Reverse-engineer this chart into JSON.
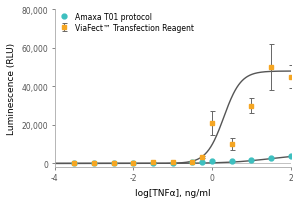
{
  "title": "",
  "xlabel": "log[TNFα], ng/ml",
  "ylabel": "Luminescence (RLU)",
  "bg_color": "#ffffff",
  "viafect_color": "#f5a623",
  "amaxa_color": "#3dbfbf",
  "fit_color": "#555555",
  "xlim": [
    -4,
    2
  ],
  "ylim": [
    -2000,
    80000
  ],
  "yticks": [
    0,
    20000,
    40000,
    60000,
    80000
  ],
  "ytick_labels": [
    "0",
    "20,000",
    "40,000",
    "60,000",
    "80,000"
  ],
  "xticks": [
    -4,
    -2,
    0,
    2
  ],
  "legend_label_viafect": "ViaFect™ Transfection Reagent",
  "legend_label_amaxa": "Amaxa T01 protocol",
  "viafect_x": [
    -3.5,
    -3.0,
    -2.5,
    -2.0,
    -1.5,
    -1.0,
    -0.5,
    -0.25,
    0.0,
    0.5,
    1.0,
    1.5,
    2.0
  ],
  "viafect_y": [
    200,
    300,
    300,
    400,
    500,
    700,
    900,
    3500,
    21000,
    10000,
    30000,
    50000,
    45000
  ],
  "viafect_yerr_lo": [
    0,
    0,
    0,
    0,
    0,
    0,
    0,
    500,
    6000,
    3000,
    4000,
    12000,
    6000
  ],
  "viafect_yerr_hi": [
    0,
    0,
    0,
    0,
    0,
    0,
    0,
    500,
    6000,
    3000,
    4000,
    12000,
    6000
  ],
  "amaxa_x": [
    -3.5,
    -3.0,
    -2.5,
    -2.0,
    -1.5,
    -1.0,
    -0.5,
    -0.25,
    0.0,
    0.5,
    1.0,
    1.5,
    2.0
  ],
  "amaxa_y": [
    100,
    100,
    150,
    150,
    200,
    300,
    500,
    700,
    1000,
    1500,
    2000,
    3000,
    4000
  ]
}
